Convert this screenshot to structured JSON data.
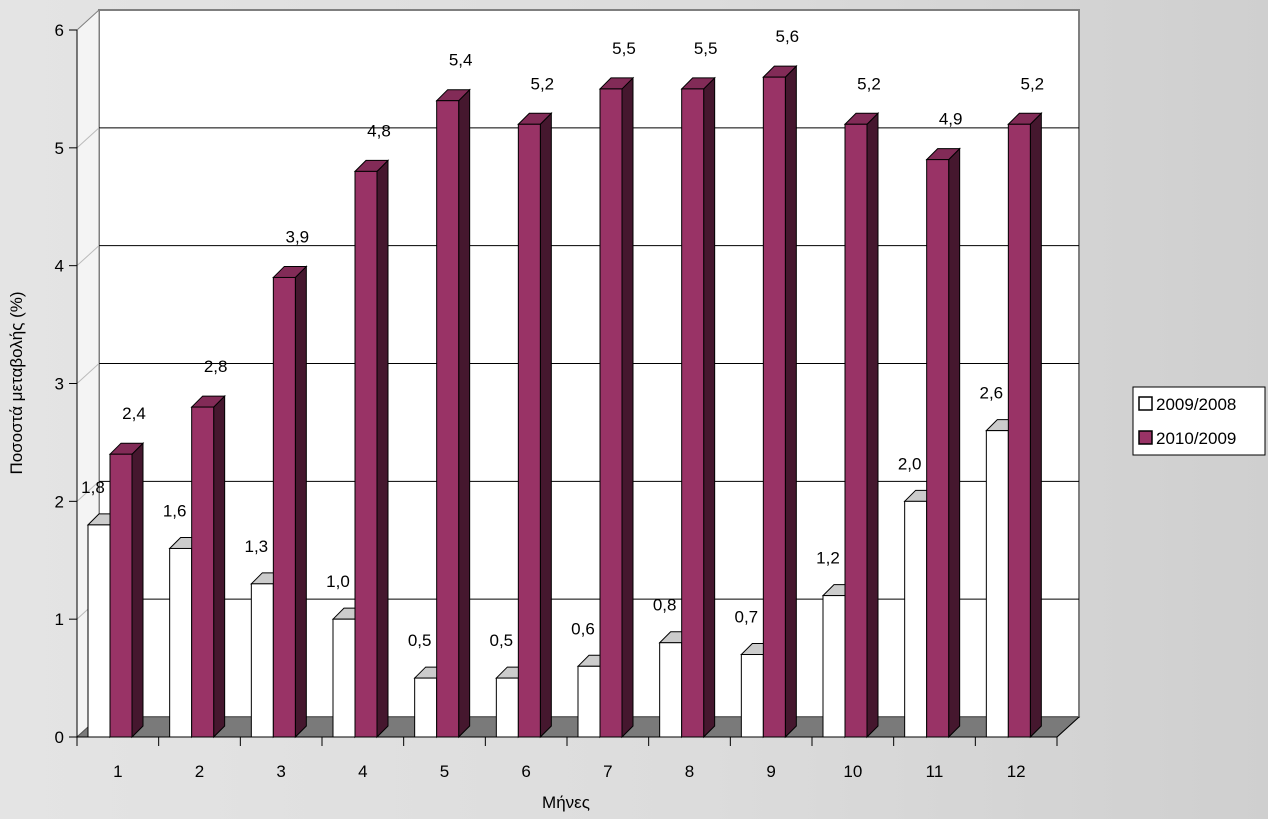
{
  "chart_data": {
    "type": "bar",
    "title": "",
    "xlabel": "Μήνες",
    "ylabel": "Ποσοστά μεταβολής (%)",
    "ylim": [
      0,
      6
    ],
    "yticks": [
      "0",
      "1",
      "2",
      "3",
      "4",
      "5",
      "6"
    ],
    "grid": true,
    "legend_position": "right",
    "categories": [
      "1",
      "2",
      "3",
      "4",
      "5",
      "6",
      "7",
      "8",
      "9",
      "10",
      "11",
      "12"
    ],
    "series": [
      {
        "name": "2009/2008",
        "color": "#ffffff",
        "values": [
          1.8,
          1.6,
          1.3,
          1.0,
          0.5,
          0.5,
          0.6,
          0.8,
          0.7,
          1.2,
          2.0,
          2.6
        ],
        "labels": [
          "1,8",
          "1,6",
          "1,3",
          "1,0",
          "0,5",
          "0,5",
          "0,6",
          "0,8",
          "0,7",
          "1,2",
          "2,0",
          "2,6"
        ]
      },
      {
        "name": "2010/2009",
        "color": "#993366",
        "values": [
          2.4,
          2.8,
          3.9,
          4.8,
          5.4,
          5.2,
          5.5,
          5.5,
          5.6,
          5.2,
          4.9,
          5.2
        ],
        "labels": [
          "2,4",
          "2,8",
          "3,9",
          "4,8",
          "5,4",
          "5,2",
          "5,5",
          "5,5",
          "5,6",
          "5,2",
          "4,9",
          "5,2"
        ]
      }
    ]
  }
}
